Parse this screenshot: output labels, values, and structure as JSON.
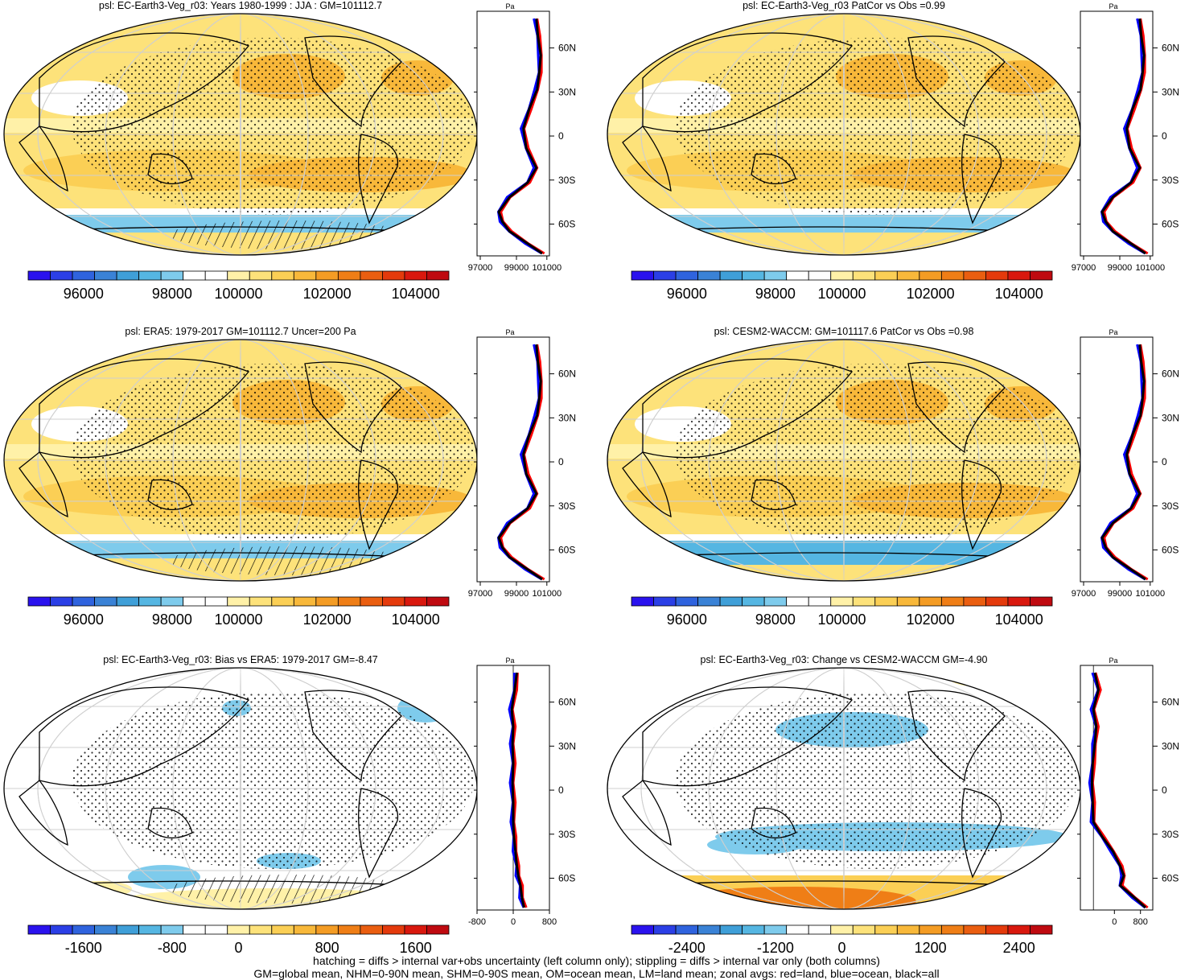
{
  "panels": [
    {
      "id": "p1",
      "title": "psl: EC-Earth3-Veg_r03: Years 1980-1999 : JJA : GM=101112.7",
      "kind": "abs",
      "hatch": true,
      "colorbar": {
        "ticks": [
          "96000",
          "98000",
          "100000",
          "102000",
          "104000"
        ]
      },
      "profile": {
        "unit": "Pa",
        "ticks": [
          "97000",
          "99000",
          "101000"
        ],
        "lat_ticks": [
          "60N",
          "30N",
          "0",
          "30S",
          "60S"
        ]
      }
    },
    {
      "id": "p2",
      "title": "psl: EC-Earth3-Veg_r03 PatCor vs Obs =0.99",
      "kind": "abs",
      "hatch": false,
      "colorbar": {
        "ticks": [
          "96000",
          "98000",
          "100000",
          "102000",
          "104000"
        ]
      },
      "profile": {
        "unit": "Pa",
        "ticks": [
          "97000",
          "99000",
          "101000"
        ],
        "lat_ticks": [
          "60N",
          "30N",
          "0",
          "30S",
          "60S"
        ]
      }
    },
    {
      "id": "p3",
      "title": "psl: ERA5: 1979-2017 GM=101112.7 Uncer=200 Pa",
      "kind": "abs",
      "hatch": true,
      "colorbar": {
        "ticks": [
          "96000",
          "98000",
          "100000",
          "102000",
          "104000"
        ]
      },
      "profile": {
        "unit": "Pa",
        "ticks": [
          "97000",
          "99000",
          "101000"
        ],
        "lat_ticks": [
          "60N",
          "30N",
          "0",
          "30S",
          "60S"
        ]
      }
    },
    {
      "id": "p4",
      "title": "psl: CESM2-WACCM: GM=101117.6 PatCor vs Obs =0.98",
      "kind": "abs",
      "hatch": false,
      "colorbar": {
        "ticks": [
          "96000",
          "98000",
          "100000",
          "102000",
          "104000"
        ]
      },
      "profile": {
        "unit": "Pa",
        "ticks": [
          "97000",
          "99000",
          "101000"
        ],
        "lat_ticks": [
          "60N",
          "30N",
          "0",
          "30S",
          "60S"
        ]
      }
    },
    {
      "id": "p5",
      "title": "psl: EC-Earth3-Veg_r03: Bias vs ERA5: 1979-2017 GM=-8.47",
      "kind": "bias",
      "hatch": true,
      "colorbar": {
        "ticks": [
          "-1600",
          "-800",
          "0",
          "800",
          "1600"
        ]
      },
      "profile": {
        "unit": "Pa",
        "ticks": [
          "-800",
          "0",
          "800"
        ],
        "lat_ticks": [
          "60N",
          "30N",
          "0",
          "30S",
          "60S"
        ]
      }
    },
    {
      "id": "p6",
      "title": "psl: EC-Earth3-Veg_r03: Change vs CESM2-WACCM GM=-4.90",
      "kind": "change",
      "hatch": false,
      "colorbar": {
        "ticks": [
          "-2400",
          "-1200",
          "0",
          "1200",
          "2400"
        ]
      },
      "profile": {
        "unit": "Pa",
        "ticks": [
          "0",
          "800"
        ],
        "lat_ticks": [
          "60N",
          "30N",
          "0",
          "30S",
          "60S"
        ]
      }
    }
  ],
  "colorbar_colors": [
    "#2a12ee",
    "#2b3fe6",
    "#2f63de",
    "#3a82d6",
    "#3f9fd8",
    "#55b6e2",
    "#7ecbec",
    "#ffffff",
    "#ffffff",
    "#fff1a8",
    "#fde27a",
    "#fbcf55",
    "#f8b83a",
    "#f49c24",
    "#ef7e16",
    "#ea5e10",
    "#e43a0c",
    "#d9180e",
    "#bf0a10"
  ],
  "chart_data": [
    {
      "type": "map",
      "title": "psl: EC-Earth3-Veg_r03: Years 1980-1999 : JJA : GM=101112.7",
      "colorbar_ticks": [
        96000,
        98000,
        100000,
        102000,
        104000
      ],
      "units": "Pa",
      "zonal_profile": {
        "x_ticks": [
          97000,
          99000,
          101000
        ],
        "y_ticks": [
          "60N",
          "30N",
          "0",
          "30S",
          "60S"
        ],
        "series": [
          {
            "name": "all",
            "color": "black"
          },
          {
            "name": "land",
            "color": "red"
          },
          {
            "name": "ocean",
            "color": "blue"
          }
        ]
      }
    },
    {
      "type": "map",
      "title": "psl: EC-Earth3-Veg_r03 PatCor vs Obs =0.99",
      "colorbar_ticks": [
        96000,
        98000,
        100000,
        102000,
        104000
      ],
      "units": "Pa"
    },
    {
      "type": "map",
      "title": "psl: ERA5: 1979-2017 GM=101112.7 Uncer=200 Pa",
      "colorbar_ticks": [
        96000,
        98000,
        100000,
        102000,
        104000
      ],
      "units": "Pa"
    },
    {
      "type": "map",
      "title": "psl: CESM2-WACCM: GM=101117.6 PatCor vs Obs =0.98",
      "colorbar_ticks": [
        96000,
        98000,
        100000,
        102000,
        104000
      ],
      "units": "Pa"
    },
    {
      "type": "map",
      "title": "psl: EC-Earth3-Veg_r03: Bias vs ERA5: 1979-2017 GM=-8.47",
      "colorbar_ticks": [
        -1600,
        -800,
        0,
        800,
        1600
      ],
      "units": "Pa"
    },
    {
      "type": "map",
      "title": "psl: EC-Earth3-Veg_r03: Change vs CESM2-WACCM GM=-4.90",
      "colorbar_ticks": [
        -2400,
        -1200,
        0,
        1200,
        2400
      ],
      "units": "Pa"
    }
  ],
  "footer": {
    "line1": "hatching = diffs > internal var+obs uncertainty (left column only); stippling = diffs > internal var only (both columns)",
    "line2": "GM=global mean, NHM=0-90N mean, SHM=0-90S mean, OM=ocean mean, LM=land mean; zonal avgs: red=land, blue=ocean, black=all"
  }
}
